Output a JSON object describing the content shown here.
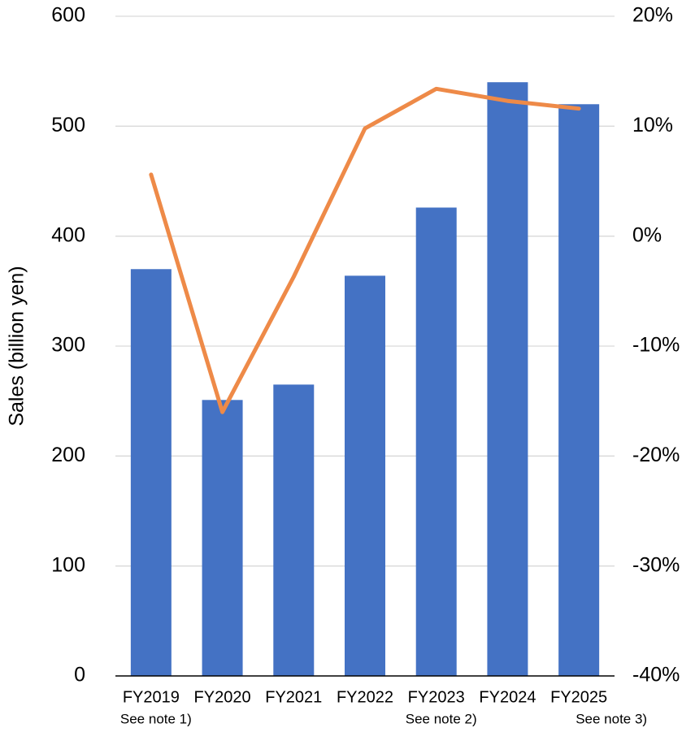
{
  "chart_data": {
    "type": "bar-line",
    "y_label": "Sales (billion yen)",
    "categories": [
      "FY2019",
      "FY2020",
      "FY2021",
      "FY2022",
      "FY2023",
      "FY2024",
      "FY2025"
    ],
    "notes": [
      "See note 1)",
      null,
      null,
      null,
      "See note 2)",
      null,
      "See note 3)"
    ],
    "series": [
      {
        "type": "bar",
        "color": "#4472c4",
        "values": [
          370,
          251,
          265,
          364,
          426,
          540,
          520
        ]
      },
      {
        "type": "line",
        "color": "#ee8a48",
        "axis": "y2",
        "values": [
          5.6,
          -16.0,
          -3.7,
          9.8,
          13.4,
          12.3,
          11.6
        ]
      }
    ],
    "ylim": [
      0,
      600
    ],
    "yticks": [
      0,
      100,
      200,
      300,
      400,
      500,
      600
    ],
    "y2lim": [
      -40,
      20
    ],
    "y2ticks": [
      {
        "value": -40,
        "label": "-40%"
      },
      {
        "value": -30,
        "label": "-30%"
      },
      {
        "value": -20,
        "label": "-20%"
      },
      {
        "value": -10,
        "label": "-10%"
      },
      {
        "value": 0,
        "label": "0%"
      },
      {
        "value": 10,
        "label": "10%"
      },
      {
        "value": 20,
        "label": "20%"
      }
    ],
    "grid": true
  }
}
